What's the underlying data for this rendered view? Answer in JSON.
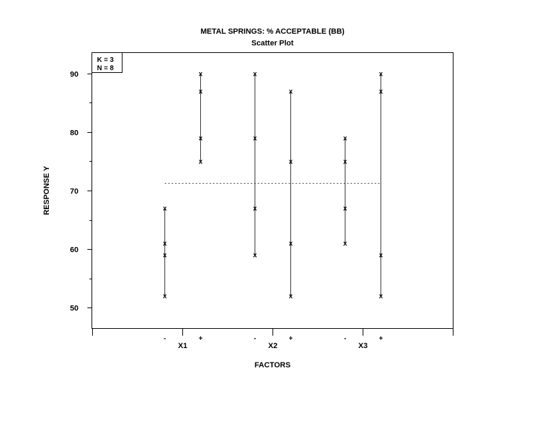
{
  "chart_data": {
    "type": "scatter",
    "title": "METAL SPRINGS: % ACCEPTABLE (BB)",
    "subtitle": "Scatter Plot",
    "xlabel": "FACTORS",
    "ylabel": "RESPONSE Y",
    "annotation": [
      "K = 3",
      "N = 8"
    ],
    "yticks": [
      50,
      60,
      70,
      80,
      90
    ],
    "ylim": [
      46.5,
      93.5
    ],
    "grand_mean": 71.25,
    "grid": false,
    "factors": [
      {
        "name": "X1",
        "levels": [
          {
            "label": "-",
            "values": [
              67,
              61,
              59,
              52
            ]
          },
          {
            "label": "+",
            "values": [
              90,
              87,
              79,
              75
            ]
          }
        ]
      },
      {
        "name": "X2",
        "levels": [
          {
            "label": "-",
            "values": [
              90,
              79,
              67,
              59
            ]
          },
          {
            "label": "+",
            "values": [
              87,
              75,
              61,
              52
            ]
          }
        ]
      },
      {
        "name": "X3",
        "levels": [
          {
            "label": "-",
            "values": [
              79,
              75,
              67,
              61
            ]
          },
          {
            "label": "+",
            "values": [
              90,
              87,
              59,
              52
            ]
          }
        ]
      }
    ]
  }
}
